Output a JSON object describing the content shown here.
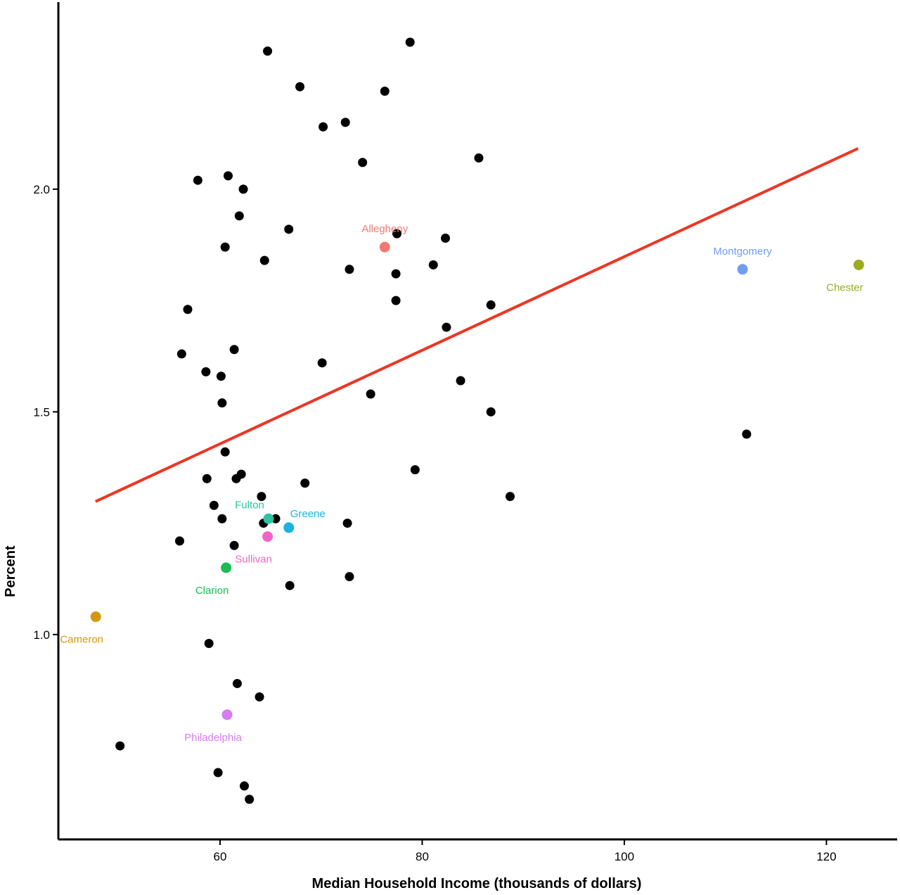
{
  "chart_data": {
    "type": "scatter",
    "title": "",
    "xlabel": "Median Household Income (thousands of dollars)",
    "ylabel": "Percent",
    "xlim": [
      44,
      127
    ],
    "ylim": [
      0.54,
      2.42
    ],
    "xticks": [
      60,
      80,
      100,
      120
    ],
    "yticks": [
      1.0,
      1.5,
      2.0
    ],
    "grid": false,
    "legend": "none",
    "default_point_color": "#000000",
    "points": [
      [
        64.7,
        2.31
      ],
      [
        78.8,
        2.33
      ],
      [
        67.9,
        2.23
      ],
      [
        76.3,
        2.22
      ],
      [
        70.2,
        2.14
      ],
      [
        72.4,
        2.15
      ],
      [
        74.1,
        2.06
      ],
      [
        85.6,
        2.07
      ],
      [
        57.8,
        2.02
      ],
      [
        60.8,
        2.03
      ],
      [
        62.3,
        2.0
      ],
      [
        61.9,
        1.94
      ],
      [
        66.8,
        1.91
      ],
      [
        77.5,
        1.9
      ],
      [
        82.3,
        1.89
      ],
      [
        60.5,
        1.87
      ],
      [
        64.4,
        1.84
      ],
      [
        72.8,
        1.82
      ],
      [
        77.4,
        1.81
      ],
      [
        81.1,
        1.83
      ],
      [
        56.8,
        1.73
      ],
      [
        77.4,
        1.75
      ],
      [
        86.8,
        1.74
      ],
      [
        82.4,
        1.69
      ],
      [
        56.2,
        1.63
      ],
      [
        61.4,
        1.64
      ],
      [
        58.6,
        1.59
      ],
      [
        60.1,
        1.58
      ],
      [
        70.1,
        1.61
      ],
      [
        83.8,
        1.57
      ],
      [
        60.2,
        1.52
      ],
      [
        74.9,
        1.54
      ],
      [
        86.8,
        1.5
      ],
      [
        112.1,
        1.45
      ],
      [
        60.5,
        1.41
      ],
      [
        79.3,
        1.37
      ],
      [
        58.7,
        1.35
      ],
      [
        61.6,
        1.35
      ],
      [
        62.1,
        1.36
      ],
      [
        68.4,
        1.34
      ],
      [
        64.1,
        1.31
      ],
      [
        59.4,
        1.29
      ],
      [
        88.7,
        1.31
      ],
      [
        60.2,
        1.26
      ],
      [
        64.3,
        1.25
      ],
      [
        65.5,
        1.26
      ],
      [
        72.6,
        1.25
      ],
      [
        56.0,
        1.21
      ],
      [
        61.4,
        1.2
      ],
      [
        72.8,
        1.13
      ],
      [
        66.9,
        1.11
      ],
      [
        58.9,
        0.98
      ],
      [
        61.7,
        0.89
      ],
      [
        63.9,
        0.86
      ],
      [
        50.1,
        0.75
      ],
      [
        59.8,
        0.69
      ],
      [
        62.4,
        0.66
      ],
      [
        62.9,
        0.63
      ]
    ],
    "highlighted": [
      {
        "name": "Allegheny",
        "x": 76.3,
        "y": 1.87,
        "color": "#f07a72",
        "label_pos": "above"
      },
      {
        "name": "Montgomery",
        "x": 111.7,
        "y": 1.82,
        "color": "#6f9ef0",
        "label_pos": "above"
      },
      {
        "name": "Chester",
        "x": 123.2,
        "y": 1.83,
        "color": "#9aab1e",
        "label_pos": "below-left"
      },
      {
        "name": "Fulton",
        "x": 64.8,
        "y": 1.26,
        "color": "#2cc4a0",
        "label_pos": "above-left"
      },
      {
        "name": "Greene",
        "x": 66.8,
        "y": 1.24,
        "color": "#1ab4df",
        "label_pos": "above-right"
      },
      {
        "name": "Sullivan",
        "x": 64.7,
        "y": 1.22,
        "color": "#f066c8",
        "label_pos": "below-left"
      },
      {
        "name": "Clarion",
        "x": 60.6,
        "y": 1.15,
        "color": "#1dbb55",
        "label_pos": "below-left"
      },
      {
        "name": "Cameron",
        "x": 47.7,
        "y": 1.04,
        "color": "#d4970e",
        "label_pos": "below-left"
      },
      {
        "name": "Philadelphia",
        "x": 60.7,
        "y": 0.82,
        "color": "#d67cf0",
        "label_pos": "below-left"
      }
    ],
    "trend_line": {
      "color": "#ee3524",
      "x": [
        47.8,
        123.0
      ],
      "y": [
        1.3,
        2.09
      ]
    }
  }
}
